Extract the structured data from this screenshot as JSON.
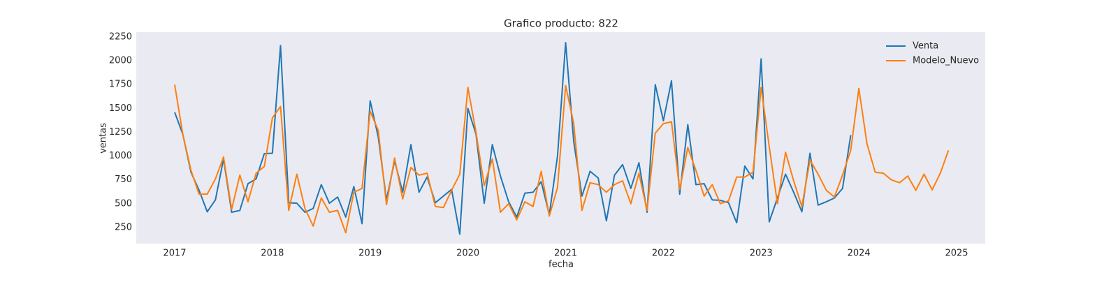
{
  "chart_data": {
    "type": "line",
    "title": "Grafico producto: 822",
    "xlabel": "fecha",
    "ylabel": "ventas",
    "x": [
      2017.0,
      2017.083,
      2017.167,
      2017.25,
      2017.333,
      2017.417,
      2017.5,
      2017.583,
      2017.667,
      2017.75,
      2017.833,
      2017.917,
      2018.0,
      2018.083,
      2018.167,
      2018.25,
      2018.333,
      2018.417,
      2018.5,
      2018.583,
      2018.667,
      2018.75,
      2018.833,
      2018.917,
      2019.0,
      2019.083,
      2019.167,
      2019.25,
      2019.333,
      2019.417,
      2019.5,
      2019.583,
      2019.667,
      2019.75,
      2019.833,
      2019.917,
      2020.0,
      2020.083,
      2020.167,
      2020.25,
      2020.333,
      2020.417,
      2020.5,
      2020.583,
      2020.667,
      2020.75,
      2020.833,
      2020.917,
      2021.0,
      2021.083,
      2021.167,
      2021.25,
      2021.333,
      2021.417,
      2021.5,
      2021.583,
      2021.667,
      2021.75,
      2021.833,
      2021.917,
      2022.0,
      2022.083,
      2022.167,
      2022.25,
      2022.333,
      2022.417,
      2022.5,
      2022.583,
      2022.667,
      2022.75,
      2022.833,
      2022.917,
      2023.0,
      2023.083,
      2023.167,
      2023.25,
      2023.333,
      2023.417,
      2023.5,
      2023.583,
      2023.667,
      2023.75,
      2023.833,
      2023.917,
      2024.0,
      2024.083,
      2024.167,
      2024.25,
      2024.333,
      2024.417,
      2024.5,
      2024.583,
      2024.667,
      2024.75,
      2024.833,
      2024.917
    ],
    "series": [
      {
        "name": "Venta",
        "color": "#1f77b4",
        "values": [
          1460,
          1230,
          830,
          640,
          415,
          540,
          970,
          410,
          430,
          710,
          760,
          1025,
          1030,
          2160,
          510,
          505,
          410,
          450,
          700,
          505,
          570,
          360,
          680,
          290,
          1580,
          1200,
          540,
          950,
          620,
          1120,
          620,
          780,
          510,
          580,
          650,
          180,
          1500,
          1230,
          505,
          1120,
          790,
          520,
          360,
          610,
          620,
          730,
          385,
          1000,
          2190,
          1150,
          580,
          840,
          770,
          320,
          800,
          910,
          660,
          930,
          410,
          1750,
          1370,
          1790,
          600,
          1330,
          700,
          710,
          540,
          535,
          510,
          300,
          895,
          760,
          2020,
          310,
          560,
          810,
          620,
          415,
          1030,
          485,
          520,
          560,
          660,
          1220,
          null,
          null,
          null,
          null,
          null,
          null,
          null,
          null,
          null,
          null,
          null,
          null
        ]
      },
      {
        "name": "Modelo_Nuevo",
        "color": "#ff7f0e",
        "values": [
          1750,
          1230,
          850,
          600,
          600,
          760,
          990,
          440,
          800,
          520,
          820,
          890,
          1400,
          1520,
          430,
          810,
          450,
          265,
          560,
          410,
          430,
          195,
          620,
          660,
          1470,
          1270,
          490,
          980,
          550,
          880,
          800,
          820,
          470,
          460,
          640,
          810,
          1720,
          1250,
          690,
          970,
          410,
          500,
          330,
          520,
          470,
          840,
          370,
          670,
          1740,
          1340,
          430,
          720,
          700,
          620,
          700,
          740,
          500,
          820,
          430,
          1240,
          1340,
          1360,
          650,
          1090,
          850,
          580,
          700,
          500,
          530,
          780,
          780,
          830,
          1720,
          1100,
          500,
          1040,
          740,
          470,
          960,
          810,
          640,
          570,
          800,
          1060,
          1710,
          1130,
          830,
          820,
          750,
          720,
          790,
          640,
          810,
          645,
          820,
          1060
        ]
      }
    ],
    "xlim": [
      2016.607,
      2025.293
    ],
    "xticks": [
      2017,
      2018,
      2019,
      2020,
      2021,
      2022,
      2023,
      2024,
      2025
    ],
    "ylim": [
      81,
      2301
    ],
    "yticks": [
      250,
      500,
      750,
      1000,
      1250,
      1500,
      1750,
      2000,
      2250
    ],
    "grid": false,
    "legend": "upper right"
  }
}
